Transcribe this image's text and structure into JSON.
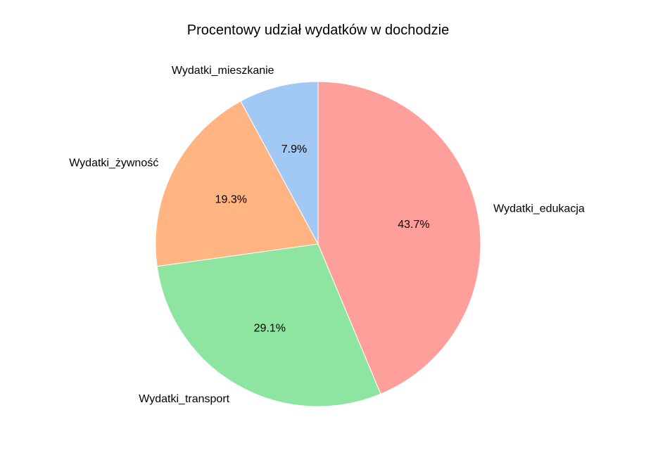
{
  "chart_data": {
    "type": "pie",
    "title": "Procentowy udział wydatków w dochodzie",
    "start_angle_deg": 90,
    "direction": "counterclockwise",
    "slices": [
      {
        "label": "Wydatki_mieszkanie",
        "value": 7.9,
        "pct_label": "7.9%",
        "color": "#a1c9f4"
      },
      {
        "label": "Wydatki_żywność",
        "value": 19.3,
        "pct_label": "19.3%",
        "color": "#ffb482"
      },
      {
        "label": "Wydatki_transport",
        "value": 29.1,
        "pct_label": "29.1%",
        "color": "#8de5a1"
      },
      {
        "label": "Wydatki_edukacja",
        "value": 43.7,
        "pct_label": "43.7%",
        "color": "#ff9f9b"
      }
    ]
  }
}
